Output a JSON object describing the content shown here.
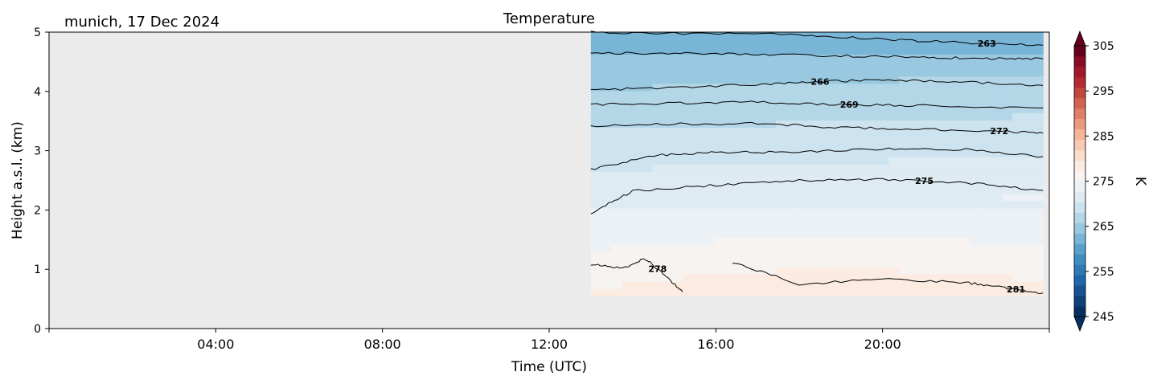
{
  "chart_data": {
    "type": "heatmap",
    "title": "Temperature",
    "subtitle": "munich, 17 Dec 2024",
    "xlabel": "Time (UTC)",
    "ylabel": "Height a.s.l. (km)",
    "xlim_hours": [
      0,
      24
    ],
    "ylim": [
      0,
      5
    ],
    "x_ticks": [
      {
        "hour": 4,
        "label": "04:00"
      },
      {
        "hour": 8,
        "label": "08:00"
      },
      {
        "hour": 12,
        "label": "12:00"
      },
      {
        "hour": 16,
        "label": "16:00"
      },
      {
        "hour": 20,
        "label": "20:00"
      }
    ],
    "y_ticks": [
      0,
      1,
      2,
      3,
      4,
      5
    ],
    "missing_data_color": "#ebebeb",
    "data_extent": {
      "start_hour": 13.0,
      "end_hour": 23.85,
      "bottom_km": 0.55,
      "top_km": 5.0
    },
    "contour_lines": [
      {
        "level": 263,
        "labeled": true,
        "label_hour": 22.5,
        "heights": [
          [
            13.0,
            5.0
          ],
          [
            15.0,
            4.98
          ],
          [
            18.0,
            4.96
          ],
          [
            20.0,
            4.88
          ],
          [
            22.0,
            4.82
          ],
          [
            23.85,
            4.78
          ]
        ]
      },
      {
        "level": 264.5,
        "labeled": false,
        "heights": [
          [
            13.0,
            4.65
          ],
          [
            15.0,
            4.64
          ],
          [
            17.0,
            4.63
          ],
          [
            19.0,
            4.6
          ],
          [
            21.0,
            4.58
          ],
          [
            22.5,
            4.55
          ],
          [
            23.85,
            4.55
          ]
        ]
      },
      {
        "level": 266,
        "labeled": true,
        "label_hour": 18.5,
        "heights": [
          [
            13.0,
            4.02
          ],
          [
            15.0,
            4.07
          ],
          [
            17.0,
            4.12
          ],
          [
            18.5,
            4.17
          ],
          [
            20.0,
            4.19
          ],
          [
            22.0,
            4.16
          ],
          [
            23.85,
            4.1
          ]
        ]
      },
      {
        "level": 269,
        "labeled": true,
        "label_hour": 19.2,
        "heights": [
          [
            13.0,
            3.78
          ],
          [
            15.0,
            3.8
          ],
          [
            17.0,
            3.82
          ],
          [
            19.0,
            3.78
          ],
          [
            21.0,
            3.76
          ],
          [
            23.85,
            3.72
          ]
        ]
      },
      {
        "level": 272,
        "labeled": true,
        "label_hour": 22.8,
        "heights": [
          [
            13.0,
            3.42
          ],
          [
            15.0,
            3.45
          ],
          [
            17.0,
            3.46
          ],
          [
            19.0,
            3.39
          ],
          [
            21.0,
            3.36
          ],
          [
            22.8,
            3.33
          ],
          [
            23.85,
            3.3
          ]
        ]
      },
      {
        "level": 273.5,
        "labeled": false,
        "heights": [
          [
            13.0,
            2.68
          ],
          [
            14.5,
            2.92
          ],
          [
            16.0,
            2.97
          ],
          [
            18.0,
            2.98
          ],
          [
            20.0,
            3.03
          ],
          [
            22.0,
            3.02
          ],
          [
            23.85,
            2.9
          ]
        ]
      },
      {
        "level": 275,
        "labeled": true,
        "label_hour": 21.0,
        "heights": [
          [
            13.0,
            1.94
          ],
          [
            14.0,
            2.32
          ],
          [
            16.0,
            2.42
          ],
          [
            18.0,
            2.5
          ],
          [
            20.0,
            2.52
          ],
          [
            22.0,
            2.46
          ],
          [
            23.85,
            2.33
          ]
        ]
      },
      {
        "level": 278,
        "labeled": true,
        "label_hour": 14.6,
        "heights": [
          [
            13.0,
            1.08
          ],
          [
            13.8,
            1.02
          ],
          [
            14.3,
            1.18
          ],
          [
            14.7,
            0.95
          ],
          [
            15.2,
            0.62
          ]
        ]
      },
      {
        "level": 281,
        "labeled": true,
        "label_hour": 23.2,
        "heights": [
          [
            16.4,
            1.12
          ],
          [
            18.0,
            0.75
          ],
          [
            20.0,
            0.83
          ],
          [
            22.0,
            0.78
          ],
          [
            23.0,
            0.68
          ],
          [
            23.85,
            0.6
          ]
        ]
      }
    ],
    "colorbar": {
      "label": "K",
      "min": 245,
      "max": 305,
      "ticks": [
        245,
        255,
        265,
        275,
        285,
        295,
        305
      ],
      "extend": "both",
      "colors": [
        "#053061",
        "#0e4179",
        "#185290",
        "#2166ac",
        "#2f79b5",
        "#3f8ec0",
        "#5aa0cd",
        "#79b5d7",
        "#99c9e0",
        "#b4d7e8",
        "#cde3ef",
        "#deebf2",
        "#ebf1f5",
        "#f6f3f1",
        "#fbebe1",
        "#fcdcca",
        "#f8c9b2",
        "#f4b599",
        "#ec9a7f",
        "#df7f66",
        "#d3634f",
        "#c2473e",
        "#b42a32",
        "#a11828",
        "#8a0b25",
        "#67001f"
      ]
    }
  }
}
